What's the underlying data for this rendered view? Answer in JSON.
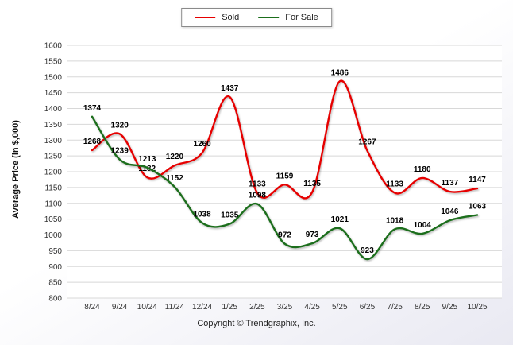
{
  "chart_data": {
    "type": "line",
    "title": "",
    "categories": [
      "8/24",
      "9/24",
      "10/24",
      "11/24",
      "12/24",
      "1/25",
      "2/25",
      "3/25",
      "4/25",
      "5/25",
      "6/25",
      "7/25",
      "8/25",
      "9/25",
      "10/25"
    ],
    "series": [
      {
        "name": "Sold",
        "color": "#e60000",
        "values": [
          1268,
          1320,
          1182,
          1220,
          1260,
          1437,
          1133,
          1159,
          1135,
          1486,
          1267,
          1133,
          1180,
          1137,
          1147
        ]
      },
      {
        "name": "For Sale",
        "color": "#1b6e1b",
        "values": [
          1374,
          1239,
          1213,
          1152,
          1038,
          1035,
          1098,
          972,
          973,
          1021,
          923,
          1018,
          1004,
          1046,
          1063
        ]
      }
    ],
    "xlabel": "",
    "ylabel": "Average Price (in $,000)",
    "ylim": [
      800,
      1600
    ],
    "ytick_step": 50,
    "grid": true,
    "legend_position": "top",
    "grid_color": "#d8d8d8",
    "tick_color": "#333333",
    "label_color": "#000000"
  },
  "footer": {
    "copyright": "Copyright © Trendgraphix, Inc."
  }
}
